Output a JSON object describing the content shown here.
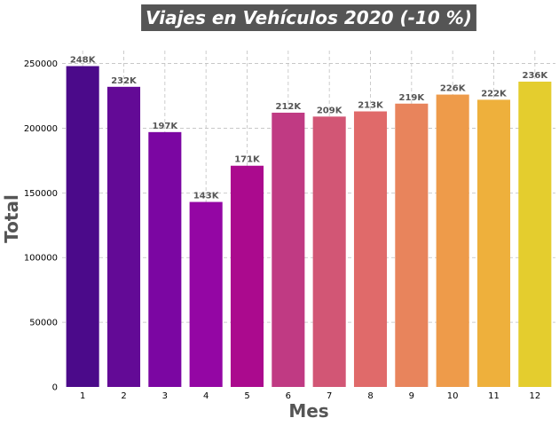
{
  "chart_data": {
    "type": "bar",
    "title": "Viajes en Vehículos 2020 (-10 %)",
    "xlabel": "Mes",
    "ylabel": "Total",
    "categories": [
      "1",
      "2",
      "3",
      "4",
      "5",
      "6",
      "7",
      "8",
      "9",
      "10",
      "11",
      "12"
    ],
    "values": [
      248000,
      232000,
      197000,
      143000,
      171000,
      212000,
      209000,
      213000,
      219000,
      226000,
      222000,
      236000
    ],
    "data_labels": [
      "248K",
      "232K",
      "197K",
      "143K",
      "171K",
      "212K",
      "209K",
      "213K",
      "219K",
      "226K",
      "222K",
      "236K"
    ],
    "yticks": [
      0,
      50000,
      100000,
      150000,
      200000,
      250000
    ],
    "ytick_labels": [
      "0",
      "50000",
      "100000",
      "150000",
      "200000",
      "250000"
    ],
    "ylim": [
      0,
      260000
    ],
    "grid": true,
    "legend": "none",
    "colormap": "plasma",
    "colors": [
      "#4b0a8a",
      "#630a96",
      "#7b06a2",
      "#9406a4",
      "#ab0a8e",
      "#c03a83",
      "#d25675",
      "#e06a6a",
      "#e8845c",
      "#ee9b4a",
      "#eeb03c",
      "#e4cd2e"
    ],
    "title_background": "#555555"
  }
}
